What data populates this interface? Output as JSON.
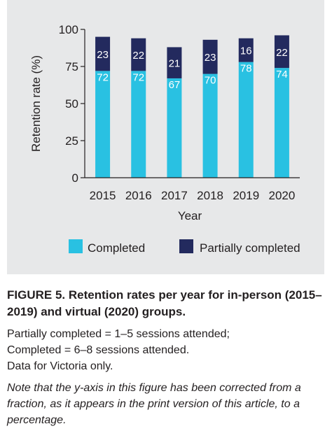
{
  "chart_data": {
    "type": "bar",
    "stacked": true,
    "categories": [
      "2015",
      "2016",
      "2017",
      "2018",
      "2019",
      "2020"
    ],
    "series": [
      {
        "name": "Completed",
        "values": [
          72,
          72,
          67,
          70,
          78,
          74
        ],
        "color": "#29c1e2"
      },
      {
        "name": "Partially completed",
        "values": [
          23,
          22,
          21,
          23,
          16,
          22
        ],
        "color": "#232a5e"
      }
    ],
    "xlabel": "Year",
    "ylabel": "Retention rate (%)",
    "ylim": [
      0,
      100
    ],
    "yticks": [
      0,
      25,
      50,
      75,
      100
    ],
    "grid": false,
    "legend_position": "bottom"
  },
  "caption": {
    "figure_label": "FIGURE 5.",
    "title": "Retention rates per year for in-person (2015–2019) and virtual (2020) groups.",
    "lines": [
      "Partially completed = 1–5 sessions attended;",
      "Completed = 6–8 sessions attended.",
      "Data for Victoria only."
    ],
    "note": "Note that the y-axis in this figure has been corrected from a fraction, as it appears in the print version of this article, to a percentage."
  }
}
